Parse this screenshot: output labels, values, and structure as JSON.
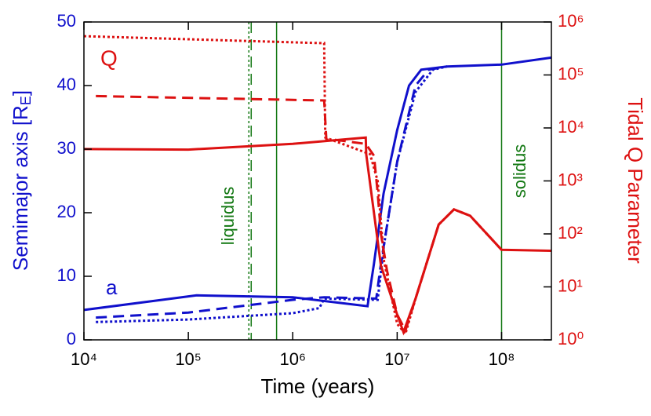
{
  "chart_data": {
    "type": "line",
    "xlabel": "Time (years)",
    "ylabel": [
      "Semimajor axis [R",
      "E",
      "]"
    ],
    "y2label": "Tidal Q Parameter",
    "xscale": "log",
    "y2scale": "log",
    "xlim": [
      10000,
      300000000
    ],
    "ylim": [
      0,
      50
    ],
    "y2lim": [
      1,
      1000000
    ],
    "xticks": [
      {
        "value": 10000,
        "label": "10⁴"
      },
      {
        "value": 100000,
        "label": "10⁵"
      },
      {
        "value": 1000000,
        "label": "10⁶"
      },
      {
        "value": 10000000,
        "label": "10⁷"
      },
      {
        "value": 100000000,
        "label": "10⁸"
      }
    ],
    "yticks": [
      0,
      10,
      20,
      30,
      40,
      50
    ],
    "y2ticks": [
      {
        "value": 1,
        "label": "10⁰"
      },
      {
        "value": 10,
        "label": "10¹"
      },
      {
        "value": 100,
        "label": "10²"
      },
      {
        "value": 1000,
        "label": "10³"
      },
      {
        "value": 10000,
        "label": "10⁴"
      },
      {
        "value": 100000,
        "label": "10⁵"
      },
      {
        "value": 1000000,
        "label": "10⁶"
      }
    ],
    "ycolor": "#1010cc",
    "y2color": "#dd1111",
    "series": [
      {
        "color": "#1010cc",
        "style": "solid",
        "x": [
          10000,
          120000,
          1000000,
          5200000,
          6000000,
          7400000,
          10000000,
          13000000,
          17000000,
          30000000,
          100000000,
          300000000
        ],
        "values": [
          4.7,
          7,
          6.7,
          5.3,
          12,
          23,
          33,
          40,
          42.5,
          43,
          43.3,
          44.4
        ]
      },
      {
        "color": "#1010cc",
        "style": "dashed",
        "x": [
          13000,
          100000,
          1000000,
          2000000,
          6300000,
          7000000,
          10000000,
          15000000,
          20000000,
          30000000
        ],
        "values": [
          3.5,
          4.3,
          6.3,
          6.7,
          6.5,
          12,
          28,
          40,
          42.5,
          43
        ]
      },
      {
        "color": "#1010cc",
        "style": "dotted",
        "x": [
          13000,
          100000,
          1000000,
          1800000,
          2000000,
          6500000,
          7500000,
          10000000,
          15000000,
          22000000,
          30000000
        ],
        "values": [
          2.8,
          3.2,
          4.2,
          5,
          6.5,
          6.3,
          15,
          28,
          39,
          42.5,
          43
        ]
      },
      {
        "color": "#dd1111",
        "style": "solid",
        "axis": "y2",
        "x": [
          10000,
          100000,
          1000000,
          5000000,
          5050000,
          7000000,
          10000000,
          11500000,
          15000000,
          25000000,
          35000000,
          50000000,
          100000000,
          300000000
        ],
        "values": [
          4000,
          3900,
          5000,
          6600,
          3200,
          25,
          3,
          1.4,
          6,
          150,
          290,
          220,
          50,
          48
        ]
      },
      {
        "color": "#dd1111",
        "style": "dashed",
        "axis": "y2",
        "x": [
          13000,
          2000000,
          2100000,
          2500000,
          5000000,
          6000000,
          6500000,
          7000000,
          8000000,
          10000000,
          12000000,
          15000000,
          25000000,
          35000000,
          50000000,
          100000000
        ],
        "values": [
          40000,
          33000,
          6000,
          6000,
          5000,
          3000,
          600,
          100,
          20,
          3,
          1.5,
          6,
          150,
          290,
          220,
          50
        ]
      },
      {
        "color": "#dd1111",
        "style": "dotted",
        "axis": "y2",
        "x": [
          10000,
          1800000,
          2000000,
          2050000,
          5500000,
          6500000,
          7500000,
          10000000,
          12000000,
          15000000,
          25000000,
          35000000,
          50000000,
          100000000
        ],
        "values": [
          540000,
          400000,
          400000,
          6600,
          3200,
          1000,
          30,
          2,
          1.3,
          6,
          150,
          290,
          220,
          50
        ]
      }
    ],
    "vlines": [
      {
        "x": 380000,
        "style": "dotted",
        "color": "#117711"
      },
      {
        "x": 400000,
        "style": "dashed",
        "color": "#117711"
      },
      {
        "x": 700000,
        "style": "solid",
        "color": "#117711"
      },
      {
        "x": 100000000,
        "style": "solid",
        "color": "#117711"
      }
    ],
    "annotations": {
      "liquidus": "liquidus",
      "solidus": "solidus",
      "a": "a",
      "Q": "Q"
    }
  }
}
